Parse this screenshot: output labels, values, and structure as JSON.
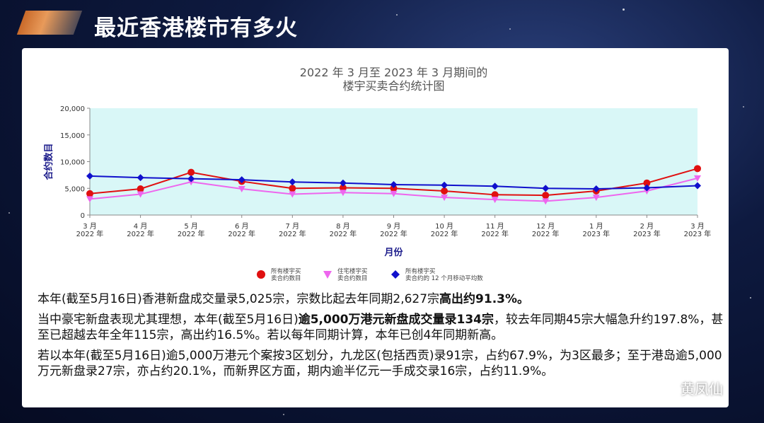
{
  "slide": {
    "title": "最近香港楼市有多火",
    "paragraphs": [
      {
        "parts": [
          {
            "text": "本年(截至5月16日)香港新盘成交量录5,025宗，宗数比起去年同期2,627宗",
            "bold": false
          },
          {
            "text": "高出约91.3%。",
            "bold": true
          }
        ]
      },
      {
        "parts": [
          {
            "text": "当中豪宅新盘表现尤其理想，本年(截至5月16日)",
            "bold": false
          },
          {
            "text": "逾5,000万港元新盘成交量录134宗",
            "bold": true
          },
          {
            "text": "，较去年同期45宗大幅急升约197.8%，甚至已超越去年全年115宗，高出约16.5%。若以每年同期计算，本年已创4年同期新高。",
            "bold": false
          }
        ]
      },
      {
        "parts": [
          {
            "text": "若以本年(截至5月16日)逾5,000万港元个案按3区划分，九龙区(包括西贡)录91宗，占约67.9%，为3区最多；至于港岛逾5,000万元新盘录27宗，亦占约20.1%，而新界区方面，期内逾半亿元一手成交录16宗，占约11.9%。",
            "bold": false
          }
        ]
      }
    ],
    "watermark": "黄凤仙"
  },
  "chart_data": {
    "type": "line",
    "title": [
      "2022 年 3 月至 2023 年 3 月期间的",
      "楼宇买卖合约统计图"
    ],
    "ylabel": "合约数目",
    "xlabel": "月份",
    "ylim": [
      0,
      20000
    ],
    "yticks": [
      0,
      5000,
      10000,
      15000,
      20000
    ],
    "ytick_labels": [
      "0",
      "5,000",
      "10,000",
      "15,000",
      "20,000"
    ],
    "categories": [
      [
        "3 月",
        "2022 年"
      ],
      [
        "4 月",
        "2022 年"
      ],
      [
        "5 月",
        "2022 年"
      ],
      [
        "6 月",
        "2022 年"
      ],
      [
        "7 月",
        "2022 年"
      ],
      [
        "8 月",
        "2022 年"
      ],
      [
        "9 月",
        "2022 年"
      ],
      [
        "10 月",
        "2022 年"
      ],
      [
        "11 月",
        "2022 年"
      ],
      [
        "12 月",
        "2022 年"
      ],
      [
        "1 月",
        "2023 年"
      ],
      [
        "2 月",
        "2023 年"
      ],
      [
        "3 月",
        "2023 年"
      ]
    ],
    "plot_background": "#d9f7f7",
    "grid": false,
    "series": [
      {
        "name": [
          "所有楼宇买",
          "卖合约数目"
        ],
        "color": "#e01010",
        "marker": "circle",
        "values": [
          4000,
          4900,
          8000,
          6300,
          5000,
          5100,
          5000,
          4500,
          3800,
          3700,
          4500,
          6000,
          8700
        ]
      },
      {
        "name": [
          "住宅楼宇买",
          "卖合约数目"
        ],
        "color": "#ee66ee",
        "marker": "triangle-down",
        "values": [
          3000,
          3900,
          6200,
          4900,
          3900,
          4200,
          4000,
          3300,
          2900,
          2600,
          3300,
          4500,
          6900
        ]
      },
      {
        "name": [
          "所有楼宇买",
          "卖合约的 12 个月移动平均数"
        ],
        "color": "#1010cc",
        "marker": "diamond",
        "values": [
          7300,
          7000,
          6800,
          6600,
          6200,
          6000,
          5700,
          5600,
          5400,
          5000,
          4900,
          5100,
          5500
        ]
      }
    ]
  }
}
